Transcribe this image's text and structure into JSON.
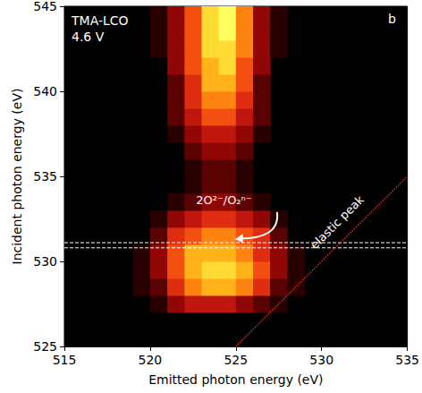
{
  "chart_data": {
    "type": "heatmap",
    "panel": "b",
    "labels": [
      "TMA-LCO",
      "4.6 V"
    ],
    "x_label": "Emitted photon energy (eV)",
    "y_label": "Incident photon energy (eV)",
    "xlim": [
      515,
      535
    ],
    "ylim": [
      525,
      545
    ],
    "xticks": [
      515,
      520,
      525,
      530,
      535
    ],
    "yticks": [
      525,
      530,
      535,
      540,
      545
    ],
    "zlim": [
      0,
      10
    ],
    "cell_size": [
      1,
      1
    ],
    "cells": [
      [
        520.5,
        527.5,
        1
      ],
      [
        521.5,
        527.5,
        3
      ],
      [
        522.5,
        527.5,
        4
      ],
      [
        523.5,
        527.5,
        4
      ],
      [
        524.5,
        527.5,
        4
      ],
      [
        525.5,
        527.5,
        3
      ],
      [
        526.5,
        527.5,
        2
      ],
      [
        527.5,
        527.5,
        1
      ],
      [
        519.5,
        528.5,
        1
      ],
      [
        520.5,
        528.5,
        2
      ],
      [
        521.5,
        528.5,
        5
      ],
      [
        522.5,
        528.5,
        7
      ],
      [
        523.5,
        528.5,
        8
      ],
      [
        524.5,
        528.5,
        8
      ],
      [
        525.5,
        528.5,
        7
      ],
      [
        526.5,
        528.5,
        5
      ],
      [
        527.5,
        528.5,
        2
      ],
      [
        528.5,
        528.5,
        1
      ],
      [
        519.5,
        529.5,
        1
      ],
      [
        520.5,
        529.5,
        3
      ],
      [
        521.5,
        529.5,
        6
      ],
      [
        522.5,
        529.5,
        8
      ],
      [
        523.5,
        529.5,
        9
      ],
      [
        524.5,
        529.5,
        9
      ],
      [
        525.5,
        529.5,
        8
      ],
      [
        526.5,
        529.5,
        6
      ],
      [
        527.5,
        529.5,
        3
      ],
      [
        528.5,
        529.5,
        1
      ],
      [
        519.5,
        530.5,
        1
      ],
      [
        520.5,
        530.5,
        3
      ],
      [
        521.5,
        530.5,
        6
      ],
      [
        522.5,
        530.5,
        8
      ],
      [
        523.5,
        530.5,
        8
      ],
      [
        524.5,
        530.5,
        8
      ],
      [
        525.5,
        530.5,
        7
      ],
      [
        526.5,
        530.5,
        5
      ],
      [
        527.5,
        530.5,
        3
      ],
      [
        528.5,
        530.5,
        1
      ],
      [
        520.5,
        531.5,
        2
      ],
      [
        521.5,
        531.5,
        5
      ],
      [
        522.5,
        531.5,
        6
      ],
      [
        523.5,
        531.5,
        7
      ],
      [
        524.5,
        531.5,
        7
      ],
      [
        525.5,
        531.5,
        6
      ],
      [
        526.5,
        531.5,
        5
      ],
      [
        527.5,
        531.5,
        2
      ],
      [
        520.5,
        532.5,
        1
      ],
      [
        521.5,
        532.5,
        3
      ],
      [
        522.5,
        532.5,
        4
      ],
      [
        523.5,
        532.5,
        5
      ],
      [
        524.5,
        532.5,
        5
      ],
      [
        525.5,
        532.5,
        4
      ],
      [
        526.5,
        532.5,
        3
      ],
      [
        527.5,
        532.5,
        1
      ],
      [
        521.5,
        533.5,
        1
      ],
      [
        522.5,
        533.5,
        2
      ],
      [
        523.5,
        533.5,
        3
      ],
      [
        524.5,
        533.5,
        3
      ],
      [
        525.5,
        533.5,
        2
      ],
      [
        526.5,
        533.5,
        1
      ],
      [
        522.5,
        534.5,
        1
      ],
      [
        523.5,
        534.5,
        2
      ],
      [
        524.5,
        534.5,
        2
      ],
      [
        525.5,
        534.5,
        1
      ],
      [
        522.5,
        535.5,
        1
      ],
      [
        523.5,
        535.5,
        2
      ],
      [
        524.5,
        535.5,
        2
      ],
      [
        525.5,
        535.5,
        1
      ],
      [
        522.5,
        536.5,
        2
      ],
      [
        523.5,
        536.5,
        3
      ],
      [
        524.5,
        536.5,
        3
      ],
      [
        525.5,
        536.5,
        2
      ],
      [
        521.5,
        537.5,
        1
      ],
      [
        522.5,
        537.5,
        3
      ],
      [
        523.5,
        537.5,
        4
      ],
      [
        524.5,
        537.5,
        4
      ],
      [
        525.5,
        537.5,
        3
      ],
      [
        526.5,
        537.5,
        1
      ],
      [
        521.5,
        538.5,
        2
      ],
      [
        522.5,
        538.5,
        4
      ],
      [
        523.5,
        538.5,
        6
      ],
      [
        524.5,
        538.5,
        6
      ],
      [
        525.5,
        538.5,
        4
      ],
      [
        526.5,
        538.5,
        2
      ],
      [
        521.5,
        539.5,
        2
      ],
      [
        522.5,
        539.5,
        5
      ],
      [
        523.5,
        539.5,
        7
      ],
      [
        524.5,
        539.5,
        7
      ],
      [
        525.5,
        539.5,
        5
      ],
      [
        526.5,
        539.5,
        2
      ],
      [
        521.5,
        540.5,
        2
      ],
      [
        522.5,
        540.5,
        5
      ],
      [
        523.5,
        540.5,
        8
      ],
      [
        524.5,
        540.5,
        8
      ],
      [
        525.5,
        540.5,
        6
      ],
      [
        526.5,
        540.5,
        2
      ],
      [
        521.5,
        541.5,
        3
      ],
      [
        522.5,
        541.5,
        6
      ],
      [
        523.5,
        541.5,
        8
      ],
      [
        524.5,
        541.5,
        9
      ],
      [
        525.5,
        541.5,
        6
      ],
      [
        526.5,
        541.5,
        3
      ],
      [
        520.5,
        542.5,
        1
      ],
      [
        521.5,
        542.5,
        3
      ],
      [
        522.5,
        542.5,
        6
      ],
      [
        523.5,
        542.5,
        9
      ],
      [
        524.5,
        542.5,
        9
      ],
      [
        525.5,
        542.5,
        7
      ],
      [
        526.5,
        542.5,
        3
      ],
      [
        527.5,
        542.5,
        1
      ],
      [
        520.5,
        543.5,
        1
      ],
      [
        521.5,
        543.5,
        3
      ],
      [
        522.5,
        543.5,
        6
      ],
      [
        523.5,
        543.5,
        9
      ],
      [
        524.5,
        543.5,
        10
      ],
      [
        525.5,
        543.5,
        7
      ],
      [
        526.5,
        543.5,
        3
      ],
      [
        527.5,
        543.5,
        1
      ],
      [
        520.5,
        544.5,
        1
      ],
      [
        521.5,
        544.5,
        3
      ],
      [
        522.5,
        544.5,
        6
      ],
      [
        523.5,
        544.5,
        9
      ],
      [
        524.5,
        544.5,
        10
      ],
      [
        525.5,
        544.5,
        7
      ],
      [
        526.5,
        544.5,
        3
      ],
      [
        527.5,
        544.5,
        1
      ]
    ],
    "annotation": "2O²⁻/O₂ⁿ⁻",
    "dashed_lines": [
      530.8,
      531.1
    ],
    "elastic_peak": {
      "label": "elastic peak",
      "x": [
        525,
        535
      ],
      "y": [
        525,
        535
      ]
    }
  }
}
